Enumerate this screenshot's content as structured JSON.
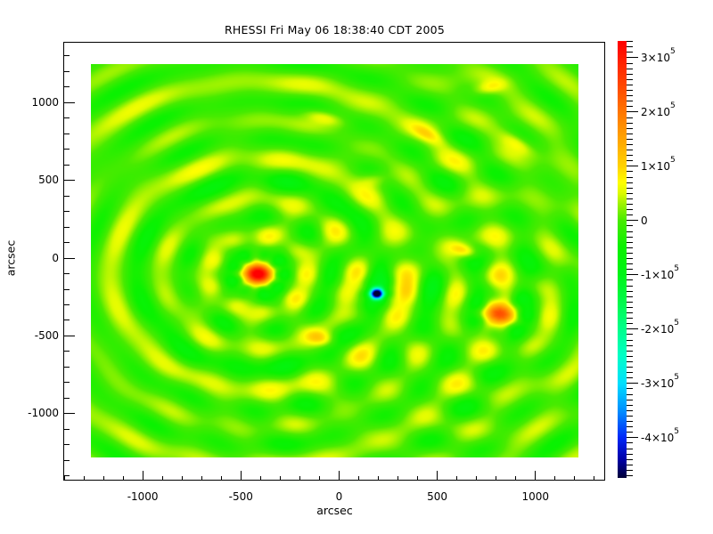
{
  "chart_data": {
    "type": "heatmap",
    "title": "RHESSI Fri May 06 18:38:40 CDT 2005",
    "xlabel": "arcsec",
    "ylabel": "arcsec",
    "xlim": [
      -1400,
      1355
    ],
    "ylim": [
      -1430,
      1385
    ],
    "xticks": [
      {
        "value": -1000,
        "label": "-1000"
      },
      {
        "value": -500,
        "label": "-500"
      },
      {
        "value": 0,
        "label": "0"
      },
      {
        "value": 500,
        "label": "500"
      },
      {
        "value": 1000,
        "label": "1000"
      }
    ],
    "yticks": [
      {
        "value": 1000,
        "label": "1000"
      },
      {
        "value": 500,
        "label": "500"
      },
      {
        "value": 0,
        "label": "0"
      },
      {
        "value": -500,
        "label": "-500"
      },
      {
        "value": -1000,
        "label": "-1000"
      }
    ],
    "major_tick_step": 500,
    "minor_tick_step": 100,
    "image_extent": {
      "x": [
        -1265,
        1220
      ],
      "y": [
        -1280,
        1245
      ]
    },
    "value_range": [
      -474000,
      331000
    ],
    "grid": false,
    "legend": "none",
    "colormap": [
      [
        -474000,
        "#000038"
      ],
      [
        -440000,
        "#0000A8"
      ],
      [
        -400000,
        "#0028F8"
      ],
      [
        -350000,
        "#0090FF"
      ],
      [
        -300000,
        "#00E0FF"
      ],
      [
        -250000,
        "#00FFC8"
      ],
      [
        -200000,
        "#00FF8C"
      ],
      [
        -150000,
        "#00FA4B"
      ],
      [
        -100000,
        "#00F518"
      ],
      [
        -50000,
        "#0AF200"
      ],
      [
        0,
        "#48EB00"
      ],
      [
        30000,
        "#9CF300"
      ],
      [
        50000,
        "#DDFB00"
      ],
      [
        70000,
        "#FFFF00"
      ],
      [
        100000,
        "#FFD400"
      ],
      [
        150000,
        "#FFA500"
      ],
      [
        200000,
        "#FF7700"
      ],
      [
        250000,
        "#FF4700"
      ],
      [
        300000,
        "#FF1C00"
      ],
      [
        331000,
        "#FF0000"
      ]
    ],
    "colorbar": {
      "major_step": 100000,
      "minor_step": 10000,
      "ticks": [
        {
          "value": 300000,
          "mantissa": "3×10",
          "exponent": "5"
        },
        {
          "value": 200000,
          "mantissa": "2×10",
          "exponent": "5"
        },
        {
          "value": 100000,
          "mantissa": "1×10",
          "exponent": "5"
        },
        {
          "value": 0,
          "mantissa": "0",
          "exponent": ""
        },
        {
          "value": -100000,
          "mantissa": "-1×10",
          "exponent": "5"
        },
        {
          "value": -200000,
          "mantissa": "-2×10",
          "exponent": "5"
        },
        {
          "value": -300000,
          "mantissa": "-3×10",
          "exponent": "5"
        },
        {
          "value": -400000,
          "mantissa": "-4×10",
          "exponent": "5"
        }
      ]
    },
    "features": {
      "sources": [
        {
          "name": "primary-compact-source",
          "x": -410,
          "y": -103,
          "peak": 340000,
          "sigma_x": 52,
          "sigma_y": 44,
          "angle_deg": -10,
          "rings": [
            {
              "amplitude": 55000,
              "wavelength": 250,
              "first_max_radius": 240,
              "decay": 2000,
              "lobe_order": 9,
              "lobe_amount": 0.3,
              "lobe_phase_deg": 10
            },
            {
              "amplitude": 20000,
              "wavelength": 430,
              "first_max_radius": 360,
              "decay": 2600,
              "lobe_order": 5,
              "lobe_amount": 0.4,
              "lobe_phase_deg": 60
            }
          ]
        },
        {
          "name": "negative-sidelobe-source",
          "x": 193,
          "y": -229,
          "peak": -500000,
          "sigma_x": 24,
          "sigma_y": 24,
          "angle_deg": 0,
          "rings": [
            {
              "amplitude": 26000,
              "wavelength": 250,
              "first_max_radius": 170,
              "decay": 700,
              "lobe_order": 6,
              "lobe_amount": 0.5,
              "lobe_phase_deg": 0
            }
          ]
        },
        {
          "name": "secondary-source",
          "x": 824,
          "y": -360,
          "peak": 190000,
          "sigma_x": 62,
          "sigma_y": 42,
          "angle_deg": -15,
          "rings": [
            {
              "amplitude": 42000,
              "wavelength": 255,
              "first_max_radius": 250,
              "decay": 1200,
              "lobe_order": 7,
              "lobe_amount": 0.35,
              "lobe_phase_deg": 30
            }
          ]
        }
      ],
      "blobs": [
        {
          "x": 645,
          "y": 45,
          "amplitude": 100000,
          "sigma_x": 55,
          "sigma_y": 30,
          "angle_deg": -25
        },
        {
          "x": -95,
          "y": -515,
          "amplitude": 80000,
          "sigma_x": 55,
          "sigma_y": 35,
          "angle_deg": -20
        },
        {
          "x": -80,
          "y": 905,
          "amplitude": 65000,
          "sigma_x": 80,
          "sigma_y": 30,
          "angle_deg": -20
        },
        {
          "x": 455,
          "y": 790,
          "amplitude": 60000,
          "sigma_x": 70,
          "sigma_y": 30,
          "angle_deg": -35
        },
        {
          "x": 905,
          "y": 740,
          "amplitude": 70000,
          "sigma_x": 75,
          "sigma_y": 33,
          "angle_deg": -40
        },
        {
          "x": 760,
          "y": 1090,
          "amplitude": 60000,
          "sigma_x": 60,
          "sigma_y": 30,
          "angle_deg": 20
        },
        {
          "x": 180,
          "y": 505,
          "amplitude": 55000,
          "sigma_x": 50,
          "sigma_y": 35,
          "angle_deg": 10
        }
      ]
    }
  }
}
